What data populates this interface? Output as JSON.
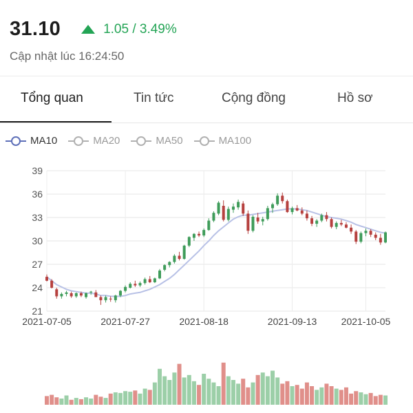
{
  "quote": {
    "price": "31.10",
    "change": "1.05 / 3.49%",
    "direction_icon": "triangle-up-icon",
    "updated": "Cập nhật lúc 16:24:50"
  },
  "tabs": [
    {
      "label": "Tổng quan",
      "active": true
    },
    {
      "label": "Tin tức",
      "active": false
    },
    {
      "label": "Cộng đồng",
      "active": false
    },
    {
      "label": "Hồ sơ",
      "active": false
    }
  ],
  "legend": [
    {
      "label": "MA10",
      "active": true
    },
    {
      "label": "MA20",
      "active": false
    },
    {
      "label": "MA50",
      "active": false
    },
    {
      "label": "MA100",
      "active": false
    }
  ],
  "colors": {
    "up": "#23a455",
    "candle_up": "#3f9c5a",
    "candle_down": "#b6413f",
    "ma10": "#b8c1e6",
    "volume_up": "#9ccfa8",
    "volume_down": "#e08f8a"
  },
  "chart_data": {
    "type": "candlestick",
    "y_ticks": [
      "39",
      "36",
      "33",
      "30",
      "27",
      "24",
      "21"
    ],
    "ylim": [
      21,
      39
    ],
    "x_tick_labels": [
      "2021-07-05",
      "2021-07-27",
      "2021-08-18",
      "2021-09-13",
      "2021-10-05"
    ],
    "x_tick_index": [
      0,
      16,
      32,
      50,
      65
    ],
    "grid": true,
    "series": [
      {
        "name": "price",
        "ohlc": [
          [
            25.4,
            25.7,
            24.8,
            24.9
          ],
          [
            24.9,
            25.1,
            23.9,
            24.0
          ],
          [
            23.8,
            24.0,
            22.6,
            22.9
          ],
          [
            22.9,
            23.4,
            22.6,
            23.2
          ],
          [
            23.2,
            23.6,
            22.9,
            23.4
          ],
          [
            23.3,
            23.5,
            22.7,
            22.9
          ],
          [
            22.9,
            23.4,
            22.7,
            23.3
          ],
          [
            23.3,
            23.5,
            22.8,
            23.0
          ],
          [
            22.8,
            23.4,
            22.6,
            23.3
          ],
          [
            23.4,
            23.6,
            23.1,
            23.5
          ],
          [
            23.4,
            23.7,
            22.8,
            22.8
          ],
          [
            22.8,
            23.0,
            21.8,
            22.4
          ],
          [
            22.4,
            23.0,
            22.1,
            22.8
          ],
          [
            22.6,
            22.9,
            22.2,
            22.5
          ],
          [
            22.4,
            23.1,
            22.1,
            23.0
          ],
          [
            23.0,
            23.7,
            22.8,
            23.6
          ],
          [
            23.6,
            24.3,
            23.4,
            24.1
          ],
          [
            24.0,
            24.7,
            23.9,
            24.5
          ],
          [
            24.5,
            24.9,
            24.1,
            24.3
          ],
          [
            24.3,
            24.8,
            24.1,
            24.6
          ],
          [
            24.6,
            25.3,
            24.4,
            25.1
          ],
          [
            25.1,
            25.5,
            24.6,
            24.7
          ],
          [
            24.7,
            25.3,
            24.6,
            25.2
          ],
          [
            25.2,
            26.4,
            25.1,
            26.2
          ],
          [
            26.3,
            27.0,
            26.1,
            26.9
          ],
          [
            26.9,
            27.4,
            26.6,
            27.3
          ],
          [
            27.3,
            28.3,
            27.1,
            28.1
          ],
          [
            28.1,
            28.6,
            27.5,
            27.7
          ],
          [
            27.7,
            29.5,
            27.6,
            29.4
          ],
          [
            29.4,
            30.6,
            29.2,
            30.5
          ],
          [
            30.4,
            31.0,
            30.0,
            30.9
          ],
          [
            30.9,
            31.2,
            30.5,
            30.7
          ],
          [
            30.7,
            31.6,
            30.5,
            31.4
          ],
          [
            31.4,
            32.9,
            31.3,
            32.6
          ],
          [
            32.6,
            33.8,
            32.4,
            33.6
          ],
          [
            33.5,
            35.1,
            33.3,
            34.9
          ],
          [
            34.5,
            35.2,
            32.5,
            32.7
          ],
          [
            32.7,
            34.4,
            32.5,
            34.1
          ],
          [
            34.0,
            34.8,
            33.6,
            34.4
          ],
          [
            34.3,
            35.3,
            34.0,
            35.0
          ],
          [
            34.8,
            35.1,
            33.2,
            33.5
          ],
          [
            33.5,
            33.9,
            30.9,
            31.3
          ],
          [
            31.3,
            33.3,
            31.1,
            33.1
          ],
          [
            33.0,
            33.6,
            32.2,
            32.5
          ],
          [
            32.5,
            33.1,
            32.0,
            32.8
          ],
          [
            32.8,
            34.5,
            32.6,
            34.2
          ],
          [
            34.2,
            34.9,
            33.6,
            34.7
          ],
          [
            34.7,
            36.1,
            34.5,
            35.8
          ],
          [
            35.8,
            36.2,
            34.8,
            35.1
          ],
          [
            35.1,
            35.3,
            33.6,
            33.7
          ],
          [
            33.7,
            34.4,
            33.4,
            34.2
          ],
          [
            34.2,
            34.6,
            33.8,
            33.9
          ],
          [
            33.9,
            34.3,
            33.3,
            33.5
          ],
          [
            33.5,
            33.9,
            32.6,
            32.9
          ],
          [
            32.9,
            33.2,
            31.9,
            32.2
          ],
          [
            32.2,
            32.8,
            31.8,
            32.6
          ],
          [
            32.6,
            33.5,
            32.4,
            33.3
          ],
          [
            33.3,
            33.7,
            32.5,
            32.8
          ],
          [
            32.8,
            33.0,
            31.6,
            31.8
          ],
          [
            31.8,
            32.5,
            31.5,
            32.3
          ],
          [
            32.3,
            32.7,
            31.9,
            32.1
          ],
          [
            32.1,
            32.4,
            31.6,
            31.7
          ],
          [
            31.7,
            32.1,
            30.9,
            31.2
          ],
          [
            31.2,
            31.4,
            29.6,
            29.9
          ],
          [
            29.9,
            31.2,
            29.7,
            31.0
          ],
          [
            31.0,
            31.6,
            30.6,
            31.3
          ],
          [
            31.3,
            31.5,
            30.5,
            30.8
          ],
          [
            30.8,
            31.1,
            30.1,
            30.4
          ],
          [
            30.4,
            30.9,
            29.5,
            29.8
          ],
          [
            29.8,
            31.2,
            29.7,
            31.1
          ]
        ]
      },
      {
        "name": "MA10",
        "values": [
          25.4,
          24.9,
          24.4,
          24.1,
          23.8,
          23.6,
          23.5,
          23.4,
          23.3,
          23.3,
          23.2,
          23.0,
          23.0,
          22.9,
          22.9,
          22.9,
          23.0,
          23.2,
          23.3,
          23.4,
          23.6,
          23.8,
          24.1,
          24.4,
          24.8,
          25.2,
          25.7,
          26.3,
          26.9,
          27.5,
          28.1,
          28.7,
          29.4,
          30.0,
          30.7,
          31.3,
          31.8,
          32.3,
          32.8,
          33.1,
          33.3,
          33.3,
          33.4,
          33.5,
          33.6,
          33.7,
          33.8,
          33.9,
          34.0,
          34.1,
          34.1,
          34.1,
          34.0,
          33.9,
          33.7,
          33.5,
          33.3,
          33.1,
          33.0,
          32.9,
          32.8,
          32.6,
          32.4,
          32.1,
          31.9,
          31.7,
          31.5,
          31.3,
          31.1,
          31.0
        ]
      },
      {
        "name": "volume",
        "values": [
          0.14,
          0.16,
          0.12,
          0.1,
          0.15,
          0.08,
          0.11,
          0.09,
          0.12,
          0.1,
          0.16,
          0.13,
          0.11,
          0.18,
          0.2,
          0.19,
          0.22,
          0.21,
          0.23,
          0.18,
          0.26,
          0.24,
          0.36,
          0.58,
          0.46,
          0.4,
          0.52,
          0.66,
          0.44,
          0.48,
          0.38,
          0.32,
          0.5,
          0.42,
          0.36,
          0.3,
          0.68,
          0.46,
          0.4,
          0.34,
          0.42,
          0.28,
          0.36,
          0.48,
          0.52,
          0.46,
          0.55,
          0.44,
          0.34,
          0.38,
          0.3,
          0.32,
          0.26,
          0.36,
          0.3,
          0.24,
          0.28,
          0.34,
          0.3,
          0.26,
          0.24,
          0.28,
          0.18,
          0.22,
          0.2,
          0.17,
          0.19,
          0.14,
          0.16,
          0.15
        ]
      }
    ]
  }
}
